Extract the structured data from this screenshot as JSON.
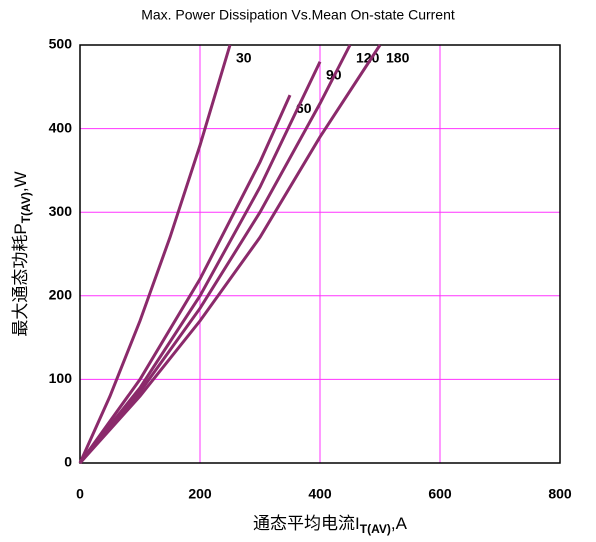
{
  "chart_data": {
    "type": "line",
    "title": "Max. Power Dissipation Vs.Mean On-state Current",
    "x_label": "通态平均电流I",
    "x_label_sub": "T(AV)",
    "x_label_unit": ",A",
    "y_label": "最大通态功耗P",
    "y_label_sub": "T(AV)",
    "y_label_unit": ",W",
    "xlim": [
      0,
      800
    ],
    "xticks": [
      0,
      200,
      400,
      600,
      800
    ],
    "ylim": [
      0,
      500
    ],
    "yticks": [
      0,
      100,
      200,
      300,
      400,
      500
    ],
    "grid": true,
    "grid_color": "#ff33ff",
    "series": [
      {
        "name": "30",
        "color": "#8b2a6b",
        "x": [
          0,
          50,
          100,
          150,
          200,
          250
        ],
        "values": [
          0,
          80,
          170,
          270,
          380,
          500
        ]
      },
      {
        "name": "60",
        "color": "#8b2a6b",
        "x": [
          0,
          100,
          200,
          300,
          350
        ],
        "values": [
          0,
          100,
          220,
          360,
          440
        ]
      },
      {
        "name": "90",
        "color": "#8b2a6b",
        "x": [
          0,
          100,
          200,
          300,
          400
        ],
        "values": [
          0,
          90,
          200,
          330,
          480
        ]
      },
      {
        "name": "120",
        "color": "#8b2a6b",
        "x": [
          0,
          100,
          200,
          300,
          400,
          450
        ],
        "values": [
          0,
          85,
          185,
          300,
          430,
          500
        ]
      },
      {
        "name": "180",
        "color": "#8b2a6b",
        "x": [
          0,
          100,
          200,
          300,
          400,
          500
        ],
        "values": [
          0,
          80,
          170,
          270,
          390,
          500
        ]
      }
    ]
  }
}
